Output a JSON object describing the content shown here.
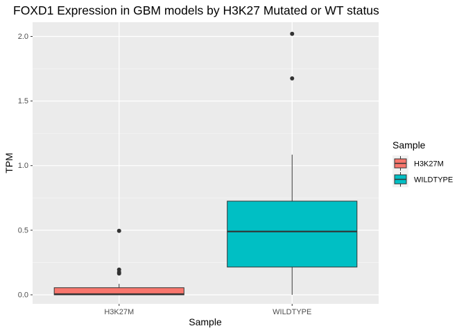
{
  "chart_data": {
    "type": "box",
    "title": "FOXD1 Expression in GBM models by H3K27 Mutated or WT status",
    "xlabel": "Sample",
    "ylabel": "TPM",
    "ylim": [
      -0.07,
      2.11
    ],
    "yticks": [
      0.0,
      0.5,
      1.0,
      1.5,
      2.0
    ],
    "ytick_labels": [
      "0.0",
      "0.5",
      "1.0",
      "1.5",
      "2.0"
    ],
    "grid": true,
    "legend": {
      "title": "Sample",
      "position": "right"
    },
    "series": [
      {
        "name": "H3K27M",
        "color": "#F8766D",
        "stats": {
          "min": 0.0,
          "q1": 0.0,
          "median": 0.005,
          "q3": 0.055,
          "max": 0.085
        },
        "outliers": [
          0.495,
          0.195,
          0.175,
          0.165
        ]
      },
      {
        "name": "WILDTYPE",
        "color": "#00BFC4",
        "stats": {
          "min": 0.0,
          "q1": 0.215,
          "median": 0.49,
          "q3": 0.725,
          "max": 1.085
        },
        "outliers": [
          2.02,
          1.675
        ]
      }
    ]
  }
}
